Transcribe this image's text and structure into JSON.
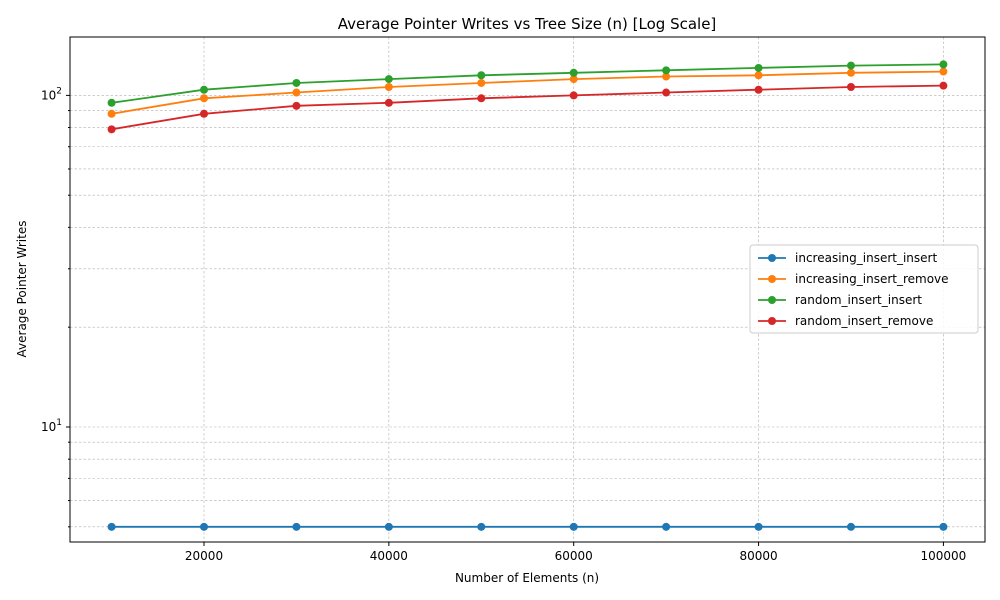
{
  "chart_data": {
    "type": "line",
    "title": "Average Pointer Writes vs Tree Size (n) [Log Scale]",
    "xlabel": "Number of Elements (n)",
    "ylabel": "Average Pointer Writes",
    "x": [
      10000,
      20000,
      30000,
      40000,
      50000,
      60000,
      70000,
      80000,
      90000,
      100000
    ],
    "xlim": [
      5500,
      104500
    ],
    "xticks": [
      20000,
      40000,
      60000,
      80000,
      100000
    ],
    "xtick_labels": [
      "20000",
      "40000",
      "60000",
      "80000",
      "100000"
    ],
    "yscale": "log",
    "ylim": [
      4.5,
      150
    ],
    "yticks_major": [
      10,
      100
    ],
    "ytick_labels": [
      "10",
      "10"
    ],
    "ytick_exponents": [
      "1",
      "2"
    ],
    "grid": true,
    "legend_position": "center-right",
    "series": [
      {
        "name": "increasing_insert_insert",
        "color": "#1f77b4",
        "values": [
          5,
          5,
          5,
          5,
          5,
          5,
          5,
          5,
          5,
          5
        ]
      },
      {
        "name": "increasing_insert_remove",
        "color": "#ff7f0e",
        "values": [
          88,
          98,
          102,
          106,
          109,
          112,
          114,
          115,
          117,
          118
        ]
      },
      {
        "name": "random_insert_insert",
        "color": "#2ca02c",
        "values": [
          95,
          104,
          109,
          112,
          115,
          117,
          119,
          121,
          123,
          124
        ]
      },
      {
        "name": "random_insert_remove",
        "color": "#d62728",
        "values": [
          79,
          88,
          93,
          95,
          98,
          100,
          102,
          104,
          106,
          107
        ]
      }
    ]
  }
}
